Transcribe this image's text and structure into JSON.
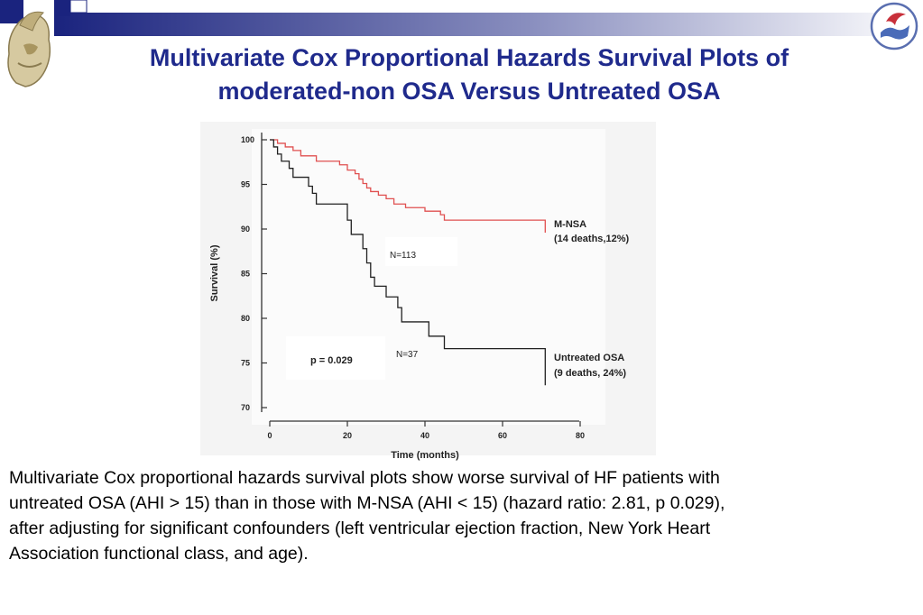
{
  "slide": {
    "title_line1": "Multivariate Cox Proportional Hazards Survival Plots of",
    "title_line2": "moderated-non OSA Versus Untreated OSA",
    "caption_lines": [
      "Multivariate Cox proportional hazards survival plots show worse survival of HF patients with",
      "untreated OSA (AHI > 15) than in those with M-NSA (AHI < 15) (hazard ratio: 2.81, p  0.029),",
      "after adjusting for significant confounders (left ventricular ejection fraction, New York Heart",
      "Association functional class, and age)."
    ]
  },
  "colors": {
    "title": "#1f2a8c",
    "header_gradient_start": "#1a237e",
    "header_gradient_end": "#ffffff",
    "mnsa_line": "#e05050",
    "osa_line": "#222222"
  },
  "chart_data": {
    "type": "line",
    "xlabel": "Time (months)",
    "ylabel": "Survival (%)",
    "xlim": [
      0,
      80
    ],
    "ylim": [
      70,
      100
    ],
    "x_ticks": [
      "0",
      "20",
      "40",
      "60",
      "80"
    ],
    "y_ticks": [
      "100",
      "95",
      "90",
      "85",
      "80",
      "75",
      "70"
    ],
    "series": [
      {
        "name": "M-NSA",
        "label_line1": "M-NSA",
        "label_line2": "(14 deaths,12%)",
        "n_label": "N=113",
        "color": "#e05050",
        "points": [
          [
            0,
            100
          ],
          [
            2,
            99.6
          ],
          [
            4,
            99.2
          ],
          [
            6,
            98.8
          ],
          [
            8,
            98.2
          ],
          [
            12,
            97.6
          ],
          [
            18,
            97.2
          ],
          [
            20,
            96.6
          ],
          [
            22,
            96.2
          ],
          [
            23,
            95.6
          ],
          [
            24,
            95.1
          ],
          [
            25,
            94.6
          ],
          [
            26,
            94.2
          ],
          [
            28,
            93.8
          ],
          [
            30,
            93.4
          ],
          [
            32,
            92.8
          ],
          [
            35,
            92.4
          ],
          [
            40,
            92.0
          ],
          [
            44,
            91.6
          ],
          [
            45,
            91.0
          ],
          [
            50,
            91.0
          ],
          [
            60,
            91.0
          ],
          [
            71,
            91.0
          ],
          [
            71,
            89.6
          ]
        ]
      },
      {
        "name": "Untreated OSA",
        "label_line1": "Untreated OSA",
        "label_line2": "(9 deaths, 24%)",
        "n_label": "N=37",
        "color": "#222222",
        "points": [
          [
            0,
            100
          ],
          [
            1,
            99.2
          ],
          [
            2,
            98.4
          ],
          [
            3,
            97.6
          ],
          [
            5,
            96.8
          ],
          [
            6,
            95.8
          ],
          [
            9,
            95.8
          ],
          [
            10,
            94.8
          ],
          [
            11,
            94.0
          ],
          [
            12,
            92.8
          ],
          [
            19,
            92.8
          ],
          [
            20,
            91.0
          ],
          [
            21,
            89.4
          ],
          [
            23,
            89.4
          ],
          [
            24,
            87.8
          ],
          [
            25,
            86.2
          ],
          [
            26,
            84.6
          ],
          [
            27,
            83.6
          ],
          [
            29,
            83.6
          ],
          [
            30,
            82.4
          ],
          [
            32,
            82.4
          ],
          [
            33,
            81.2
          ],
          [
            34,
            79.6
          ],
          [
            40,
            79.6
          ],
          [
            41,
            78.0
          ],
          [
            44,
            78.0
          ],
          [
            45,
            76.6
          ],
          [
            55,
            76.6
          ],
          [
            71,
            76.6
          ],
          [
            71,
            72.5
          ]
        ]
      }
    ],
    "annotations": [
      "p = 0.029"
    ]
  }
}
